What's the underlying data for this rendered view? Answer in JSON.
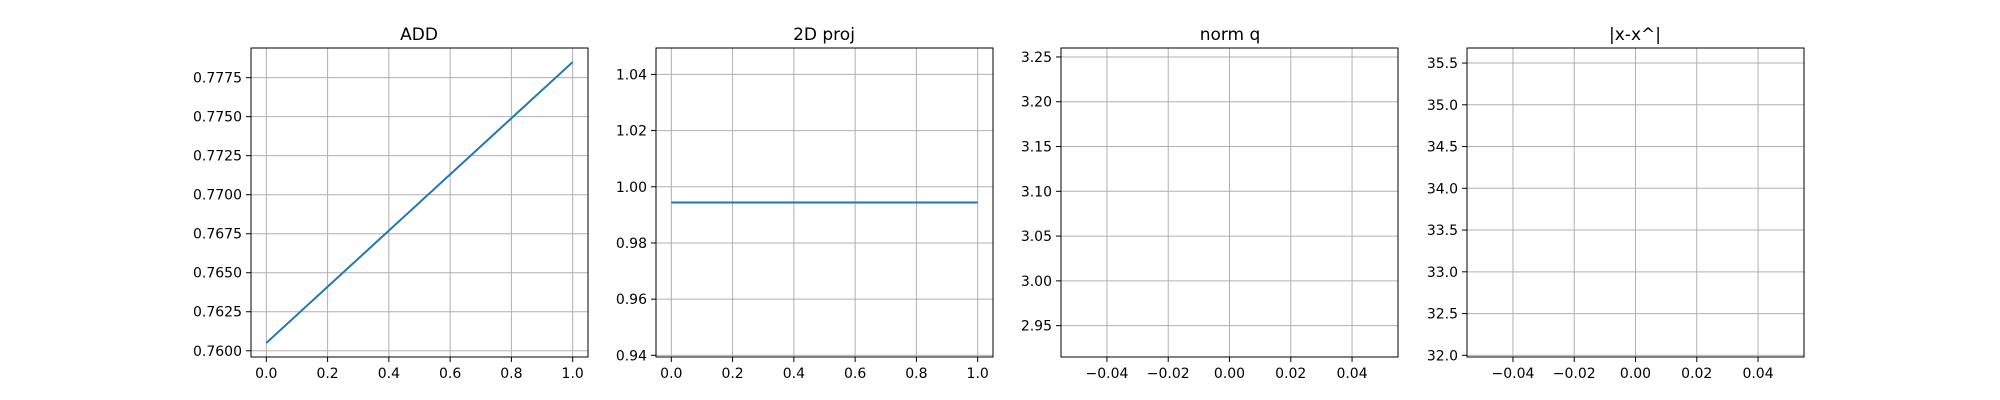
{
  "chart_data": [
    {
      "type": "line",
      "title": "ADD",
      "xlabel": "",
      "ylabel": "",
      "grid": true,
      "xlim": [
        -0.05,
        1.05
      ],
      "ylim": [
        0.7596,
        0.7794
      ],
      "xticks": [
        0.0,
        0.2,
        0.4,
        0.6,
        0.8,
        1.0
      ],
      "xtick_labels": [
        "0.0",
        "0.2",
        "0.4",
        "0.6",
        "0.8",
        "1.0"
      ],
      "yticks": [
        0.76,
        0.7625,
        0.765,
        0.7675,
        0.77,
        0.7725,
        0.775,
        0.7775
      ],
      "ytick_labels": [
        "0.7600",
        "0.7625",
        "0.7650",
        "0.7675",
        "0.7700",
        "0.7725",
        "0.7750",
        "0.7775"
      ],
      "series": [
        {
          "x": [
            0.0,
            1.0
          ],
          "values": [
            0.7605,
            0.7785
          ]
        }
      ]
    },
    {
      "type": "line",
      "title": "2D proj",
      "xlabel": "",
      "ylabel": "",
      "grid": true,
      "xlim": [
        -0.05,
        1.05
      ],
      "ylim": [
        0.9394,
        1.0494
      ],
      "xticks": [
        0.0,
        0.2,
        0.4,
        0.6,
        0.8,
        1.0
      ],
      "xtick_labels": [
        "0.0",
        "0.2",
        "0.4",
        "0.6",
        "0.8",
        "1.0"
      ],
      "yticks": [
        0.94,
        0.96,
        0.98,
        1.0,
        1.02,
        1.04
      ],
      "ytick_labels": [
        "0.94",
        "0.96",
        "0.98",
        "1.00",
        "1.02",
        "1.04"
      ],
      "series": [
        {
          "x": [
            0.0,
            1.0
          ],
          "values": [
            0.9944,
            0.9944
          ]
        }
      ]
    },
    {
      "type": "line",
      "title": "norm q",
      "xlabel": "",
      "ylabel": "",
      "grid": true,
      "xlim": [
        -0.055,
        0.055
      ],
      "ylim": [
        2.915,
        3.26
      ],
      "xticks": [
        -0.04,
        -0.02,
        0.0,
        0.02,
        0.04
      ],
      "xtick_labels": [
        "−0.04",
        "−0.02",
        "0.00",
        "0.02",
        "0.04"
      ],
      "yticks": [
        2.95,
        3.0,
        3.05,
        3.1,
        3.15,
        3.2,
        3.25
      ],
      "ytick_labels": [
        "2.95",
        "3.00",
        "3.05",
        "3.10",
        "3.15",
        "3.20",
        "3.25"
      ],
      "series": []
    },
    {
      "type": "line",
      "title": "|x-x^|",
      "xlabel": "",
      "ylabel": "",
      "grid": true,
      "xlim": [
        -0.055,
        0.055
      ],
      "ylim": [
        31.98,
        35.68
      ],
      "xticks": [
        -0.04,
        -0.02,
        0.0,
        0.02,
        0.04
      ],
      "xtick_labels": [
        "−0.04",
        "−0.02",
        "0.00",
        "0.02",
        "0.04"
      ],
      "yticks": [
        32.0,
        32.5,
        33.0,
        33.5,
        34.0,
        34.5,
        35.0,
        35.5
      ],
      "ytick_labels": [
        "32.0",
        "32.5",
        "33.0",
        "33.5",
        "34.0",
        "34.5",
        "35.0",
        "35.5"
      ],
      "series": []
    }
  ],
  "colors": {
    "line": "#1f77b4",
    "grid": "#b0b0b0",
    "axes": "#000000",
    "background": "#ffffff"
  }
}
